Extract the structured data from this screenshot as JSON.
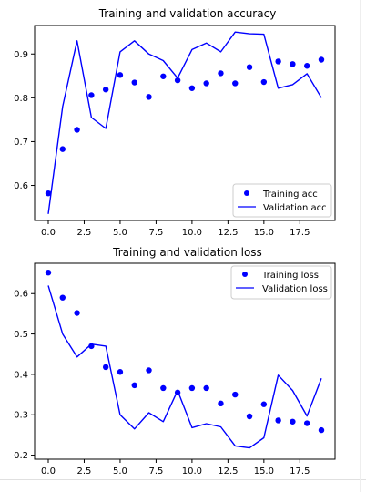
{
  "colors": {
    "accent": "#0000ff",
    "axes": "#000000"
  },
  "chart_data": [
    {
      "type": "line",
      "title": "Training and validation accuracy",
      "xlabel": "",
      "ylabel": "",
      "xlim": [
        -0.95,
        19.95
      ],
      "ylim": [
        0.52,
        0.965
      ],
      "xticks": [
        0.0,
        2.5,
        5.0,
        7.5,
        10.0,
        12.5,
        15.0,
        17.5
      ],
      "xtick_labels": [
        "0.0",
        "2.5",
        "5.0",
        "7.5",
        "10.0",
        "12.5",
        "15.0",
        "17.5"
      ],
      "yticks": [
        0.6,
        0.7,
        0.8,
        0.9
      ],
      "ytick_labels": [
        "0.6",
        "0.7",
        "0.8",
        "0.9"
      ],
      "grid": false,
      "legend_position": "lower right",
      "series": [
        {
          "name": "Training acc",
          "style": "points",
          "color": "#0000ff",
          "x": [
            0,
            1,
            2,
            3,
            4,
            5,
            6,
            7,
            8,
            9,
            10,
            11,
            12,
            13,
            14,
            15,
            16,
            17,
            18,
            19
          ],
          "values": [
            0.582,
            0.683,
            0.727,
            0.806,
            0.819,
            0.852,
            0.835,
            0.802,
            0.849,
            0.84,
            0.822,
            0.833,
            0.856,
            0.833,
            0.87,
            0.836,
            0.883,
            0.877,
            0.873,
            0.887
          ]
        },
        {
          "name": "Validation acc",
          "style": "line",
          "color": "#0000ff",
          "x": [
            0,
            1,
            2,
            3,
            4,
            5,
            6,
            7,
            8,
            9,
            10,
            11,
            12,
            13,
            14,
            15,
            16,
            17,
            18,
            19
          ],
          "values": [
            0.535,
            0.78,
            0.93,
            0.755,
            0.73,
            0.905,
            0.93,
            0.9,
            0.885,
            0.845,
            0.91,
            0.925,
            0.905,
            0.95,
            0.946,
            0.945,
            0.822,
            0.83,
            0.855,
            0.8
          ]
        }
      ]
    },
    {
      "type": "line",
      "title": "Training and validation loss",
      "xlabel": "",
      "ylabel": "",
      "xlim": [
        -0.95,
        19.95
      ],
      "ylim": [
        0.19,
        0.675
      ],
      "xticks": [
        0.0,
        2.5,
        5.0,
        7.5,
        10.0,
        12.5,
        15.0,
        17.5
      ],
      "xtick_labels": [
        "0.0",
        "2.5",
        "5.0",
        "7.5",
        "10.0",
        "12.5",
        "15.0",
        "17.5"
      ],
      "yticks": [
        0.2,
        0.3,
        0.4,
        0.5,
        0.6
      ],
      "ytick_labels": [
        "0.2",
        "0.3",
        "0.4",
        "0.5",
        "0.6"
      ],
      "grid": false,
      "legend_position": "upper right",
      "series": [
        {
          "name": "Training loss",
          "style": "points",
          "color": "#0000ff",
          "x": [
            0,
            1,
            2,
            3,
            4,
            5,
            6,
            7,
            8,
            9,
            10,
            11,
            12,
            13,
            14,
            15,
            16,
            17,
            18,
            19
          ],
          "values": [
            0.652,
            0.59,
            0.552,
            0.47,
            0.418,
            0.406,
            0.373,
            0.41,
            0.366,
            0.355,
            0.366,
            0.366,
            0.328,
            0.35,
            0.296,
            0.326,
            0.286,
            0.283,
            0.279,
            0.262
          ]
        },
        {
          "name": "Validation loss",
          "style": "line",
          "color": "#0000ff",
          "x": [
            0,
            1,
            2,
            3,
            4,
            5,
            6,
            7,
            8,
            9,
            10,
            11,
            12,
            13,
            14,
            15,
            16,
            17,
            18,
            19
          ],
          "values": [
            0.62,
            0.5,
            0.443,
            0.475,
            0.47,
            0.3,
            0.265,
            0.305,
            0.283,
            0.36,
            0.268,
            0.278,
            0.27,
            0.223,
            0.218,
            0.243,
            0.398,
            0.36,
            0.297,
            0.39
          ]
        }
      ]
    }
  ]
}
